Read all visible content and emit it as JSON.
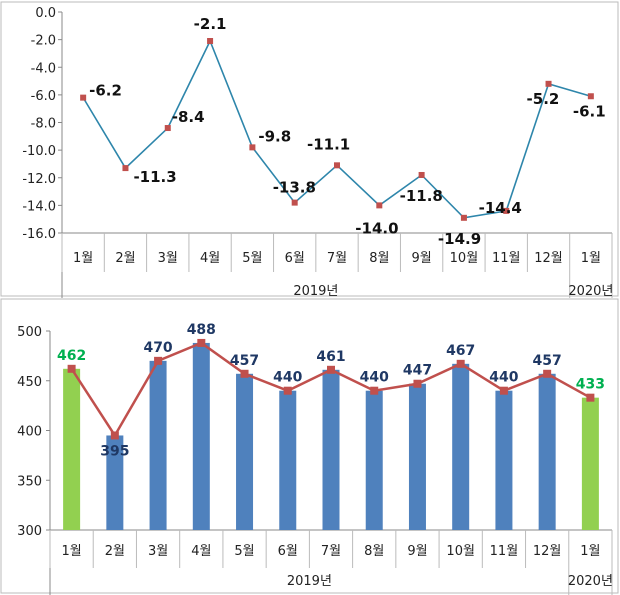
{
  "chart_data": [
    {
      "type": "line",
      "categories": [
        "1월",
        "2월",
        "3월",
        "4월",
        "5월",
        "6월",
        "7월",
        "8월",
        "9월",
        "10월",
        "11월",
        "12월",
        "1월"
      ],
      "groups": [
        {
          "label": "2019년",
          "from": 0,
          "to": 11
        },
        {
          "label": "2020년",
          "from": 12,
          "to": 12
        }
      ],
      "series": [
        {
          "values": [
            -6.2,
            -11.3,
            -8.4,
            -2.1,
            -9.8,
            -13.8,
            -11.1,
            -14.0,
            -11.8,
            -14.9,
            -14.4,
            -5.2,
            -6.1
          ]
        }
      ],
      "data_labels": [
        "-6.2",
        "-11.3",
        "-8.4",
        "-2.1",
        "-9.8",
        "-13.8",
        "-11.1",
        "-14.0",
        "-11.8",
        "-14.9",
        "-14.4",
        "-5.2",
        "-6.1"
      ],
      "y_ticks": [
        "0.0",
        "-2.0",
        "-4.0",
        "-6.0",
        "-8.0",
        "-10.0",
        "-12.0",
        "-14.0",
        "-16.0"
      ],
      "ylim": [
        -16,
        0
      ],
      "colors": {
        "line": "#2E86AB",
        "marker": "#C0504D"
      },
      "grid": false
    },
    {
      "type": "bar",
      "categories": [
        "1월",
        "2월",
        "3월",
        "4월",
        "5월",
        "6월",
        "7월",
        "8월",
        "9월",
        "10월",
        "11월",
        "12월",
        "1월"
      ],
      "groups": [
        {
          "label": "2019년",
          "from": 0,
          "to": 11
        },
        {
          "label": "2020년",
          "from": 12,
          "to": 12
        }
      ],
      "series": [
        {
          "values": [
            462,
            395,
            470,
            488,
            457,
            440,
            461,
            440,
            447,
            467,
            440,
            457,
            433
          ]
        }
      ],
      "data_labels": [
        "462",
        "395",
        "470",
        "488",
        "457",
        "440",
        "461",
        "440",
        "447",
        "467",
        "440",
        "457",
        "433"
      ],
      "highlight_indices": [
        0,
        12
      ],
      "y_ticks": [
        "500",
        "450",
        "400",
        "350",
        "300"
      ],
      "ylim": [
        300,
        500
      ],
      "colors": {
        "bar": "#4F81BD",
        "bar_highlight": "#92D050",
        "line": "#C0504D",
        "label": "#1F3864",
        "label_highlight": "#00B050"
      },
      "grid": false
    }
  ]
}
